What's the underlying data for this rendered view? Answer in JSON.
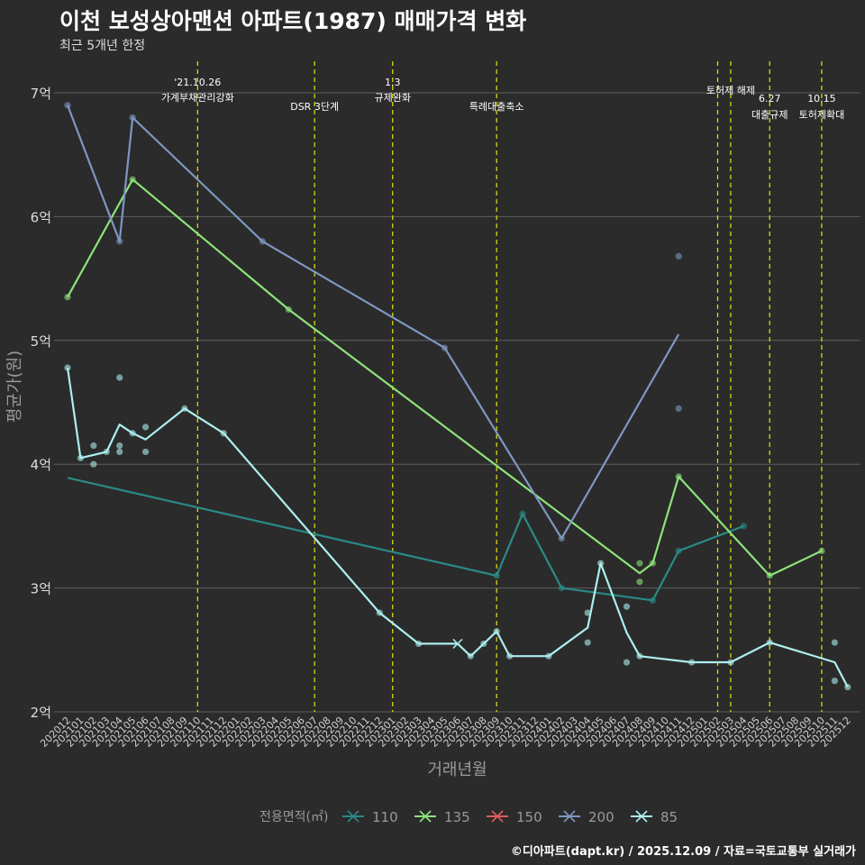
{
  "header": {
    "title": "이천 보성상아맨션 아파트(1987) 매매가격 변화",
    "subtitle": "최근 5개년 한정"
  },
  "footer": {
    "credit": "©디아파트(dapt.kr) / 2025.12.09 / 자료=국토교통부 실거래가"
  },
  "chart_data": {
    "type": "line",
    "title": "이천 보성상아맨션 아파트(1987) 매매가격 변화",
    "subtitle": "최근 5개년 한정",
    "xlabel": "거래년월",
    "ylabel": "평균가(원)",
    "ylim": [
      2,
      7.2
    ],
    "yticks": [
      2,
      3,
      4,
      5,
      6,
      7
    ],
    "ytick_labels": [
      "2억",
      "3억",
      "4억",
      "5억",
      "6억",
      "7억"
    ],
    "x_start": "2020-12",
    "x_end": "2025-12",
    "grid": true,
    "legend_title": "전용면적(㎡)",
    "legend_position": "bottom",
    "events": [
      {
        "x": 10,
        "lines": [
          "'21.10.26",
          "가계부채관리강화"
        ],
        "level": "high"
      },
      {
        "x": 19,
        "lines": [
          "DSR 3단계"
        ],
        "level": "low"
      },
      {
        "x": 25,
        "lines": [
          "1.3",
          "규제완화"
        ],
        "level": "high"
      },
      {
        "x": 33,
        "lines": [
          "특례대출축소"
        ],
        "level": "low"
      },
      {
        "x": 50,
        "lines": [],
        "level": "none"
      },
      {
        "x": 51,
        "lines": [
          "토허제 해제"
        ],
        "level": "mid"
      },
      {
        "x": 54,
        "lines": [
          "6.27",
          "대출규제"
        ],
        "level": "high2"
      },
      {
        "x": 58,
        "lines": [
          "10.15",
          "토허제확대"
        ],
        "level": "high2"
      }
    ],
    "series": [
      {
        "name": "110",
        "color": "#2a8a86",
        "line": [
          [
            0,
            3.89
          ],
          [
            33,
            3.1
          ],
          [
            35,
            3.6
          ],
          [
            38,
            3.0
          ],
          [
            45,
            2.9
          ],
          [
            47,
            3.3
          ],
          [
            52,
            3.5
          ]
        ],
        "points": [
          [
            33,
            3.1
          ],
          [
            35,
            3.6
          ],
          [
            38,
            3.0
          ],
          [
            45,
            2.9
          ],
          [
            47,
            3.3
          ],
          [
            52,
            3.5
          ]
        ]
      },
      {
        "name": "135",
        "color": "#8de37a",
        "line": [
          [
            0,
            5.35
          ],
          [
            5,
            6.3
          ],
          [
            17,
            5.25
          ],
          [
            44,
            3.12
          ],
          [
            45,
            3.2
          ],
          [
            47,
            3.9
          ],
          [
            54,
            3.1
          ],
          [
            58,
            3.3
          ]
        ],
        "points": [
          [
            0,
            5.35
          ],
          [
            5,
            6.3
          ],
          [
            17,
            5.25
          ],
          [
            44,
            3.2
          ],
          [
            44,
            3.05
          ],
          [
            45,
            3.2
          ],
          [
            47,
            3.9
          ],
          [
            54,
            3.1
          ],
          [
            58,
            3.3
          ]
        ]
      },
      {
        "name": "150",
        "color": "#e05c5c",
        "line": [],
        "points": []
      },
      {
        "name": "200",
        "color": "#7e97c2",
        "line": [
          [
            0,
            6.9
          ],
          [
            4,
            5.8
          ],
          [
            5,
            6.8
          ],
          [
            15,
            5.8
          ],
          [
            29,
            4.94
          ],
          [
            38,
            3.4
          ],
          [
            47,
            5.05
          ]
        ],
        "points": [
          [
            0,
            6.9
          ],
          [
            4,
            5.8
          ],
          [
            5,
            6.8
          ],
          [
            15,
            5.8
          ],
          [
            29,
            4.94
          ],
          [
            38,
            3.4
          ],
          [
            47,
            5.68
          ],
          [
            47,
            4.45
          ]
        ]
      },
      {
        "name": "85",
        "color": "#aeeeee",
        "line": [
          [
            0,
            4.78
          ],
          [
            1,
            4.05
          ],
          [
            3,
            4.1
          ],
          [
            4,
            4.32
          ],
          [
            5,
            4.25
          ],
          [
            6,
            4.2
          ],
          [
            9,
            4.45
          ],
          [
            12,
            4.25
          ],
          [
            24,
            2.8
          ],
          [
            27,
            2.55
          ],
          [
            30,
            2.55
          ],
          [
            31,
            2.45
          ],
          [
            32,
            2.55
          ],
          [
            33,
            2.65
          ],
          [
            34,
            2.45
          ],
          [
            37,
            2.45
          ],
          [
            40,
            2.68
          ],
          [
            41,
            3.2
          ],
          [
            43,
            2.64
          ],
          [
            44,
            2.45
          ],
          [
            48,
            2.4
          ],
          [
            51,
            2.4
          ],
          [
            54,
            2.56
          ],
          [
            59,
            2.4
          ],
          [
            60,
            2.2
          ]
        ],
        "points": [
          [
            0,
            4.78
          ],
          [
            1,
            4.05
          ],
          [
            2,
            4.15
          ],
          [
            2,
            4.0
          ],
          [
            3,
            4.1
          ],
          [
            4,
            4.7
          ],
          [
            4,
            4.15
          ],
          [
            4,
            4.1
          ],
          [
            5,
            4.25
          ],
          [
            6,
            4.3
          ],
          [
            6,
            4.1
          ],
          [
            9,
            4.45
          ],
          [
            12,
            4.25
          ],
          [
            24,
            2.8
          ],
          [
            27,
            2.55
          ],
          [
            31,
            2.45
          ],
          [
            32,
            2.55
          ],
          [
            33,
            2.65
          ],
          [
            34,
            2.45
          ],
          [
            37,
            2.45
          ],
          [
            40,
            2.8
          ],
          [
            40,
            2.56
          ],
          [
            41,
            3.2
          ],
          [
            43,
            2.85
          ],
          [
            43,
            2.4
          ],
          [
            44,
            2.45
          ],
          [
            48,
            2.4
          ],
          [
            51,
            2.4
          ],
          [
            54,
            2.56
          ],
          [
            59,
            2.56
          ],
          [
            59,
            2.25
          ],
          [
            60,
            2.2
          ]
        ],
        "crosses": [
          [
            30,
            2.55
          ]
        ]
      }
    ]
  }
}
